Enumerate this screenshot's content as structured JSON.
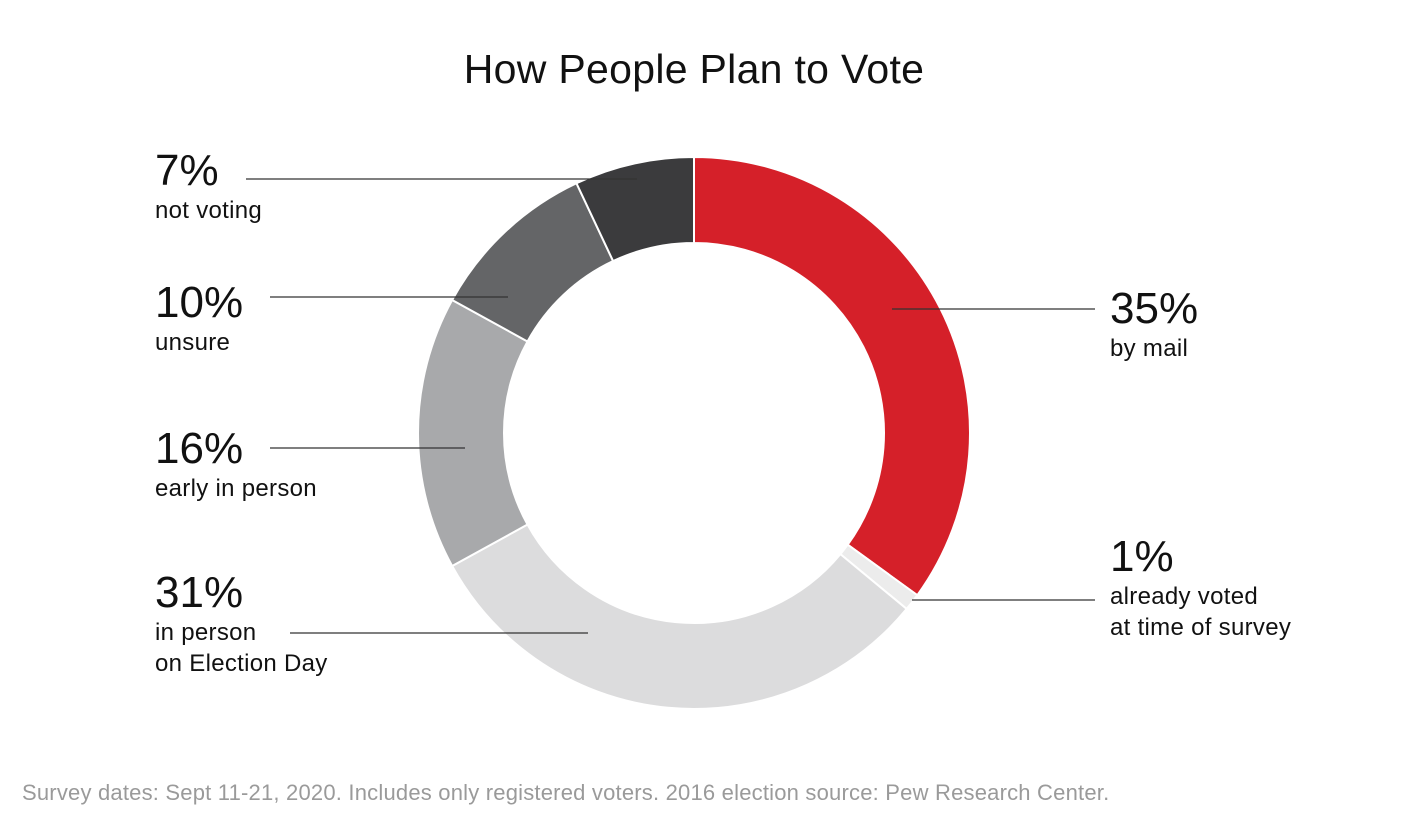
{
  "chart_data": {
    "type": "pie",
    "subtype": "donut",
    "title": "How People Plan to Vote",
    "slices": [
      {
        "label": "by mail",
        "value": 35,
        "display": "35%",
        "color": "#d52029"
      },
      {
        "label": "already voted at time of survey",
        "value": 1,
        "display": "1%",
        "color": "#ececec"
      },
      {
        "label": "in person on Election Day",
        "value": 31,
        "display": "31%",
        "color": "#dcdcdd"
      },
      {
        "label": "early in person",
        "value": 16,
        "display": "16%",
        "color": "#a8a9ab"
      },
      {
        "label": "unsure",
        "value": 10,
        "display": "10%",
        "color": "#646567"
      },
      {
        "label": "not voting",
        "value": 7,
        "display": "7%",
        "color": "#3b3b3d"
      }
    ]
  },
  "footnote": "Survey dates: Sept 11-21, 2020. Includes only registered voters. 2016 election source: Pew Research Center."
}
